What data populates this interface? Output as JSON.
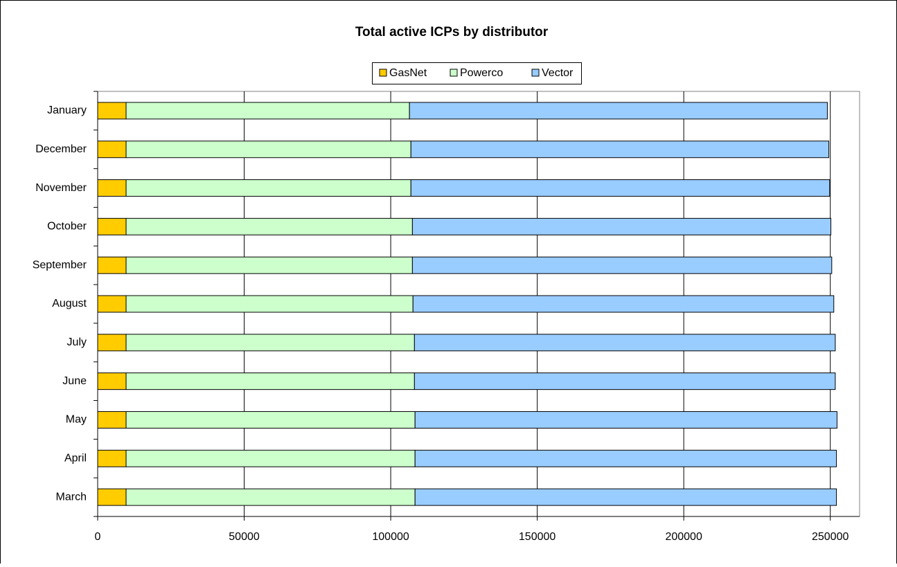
{
  "chart_data": {
    "type": "stacked-barh",
    "title": "Total active ICPs by distributor",
    "categories": [
      "March",
      "April",
      "May",
      "June",
      "July",
      "August",
      "September",
      "October",
      "November",
      "December",
      "January"
    ],
    "series": [
      {
        "name": "GasNet",
        "color": "#ffcc00",
        "values": [
          9700,
          9700,
          9700,
          9700,
          9700,
          9700,
          9700,
          9700,
          9700,
          9700,
          9700
        ]
      },
      {
        "name": "Powerco",
        "color": "#ccffcc",
        "values": [
          98600,
          98600,
          98600,
          98400,
          98400,
          97900,
          97700,
          97700,
          97200,
          97200,
          96700
        ]
      },
      {
        "name": "Vector",
        "color": "#99ccff",
        "values": [
          143800,
          143800,
          144000,
          143600,
          143600,
          143600,
          143100,
          142800,
          142900,
          142600,
          142600
        ]
      }
    ],
    "xlim": [
      0,
      260000
    ],
    "xticks": [
      0,
      50000,
      100000,
      150000,
      200000,
      250000
    ],
    "grid": true,
    "legend": "top"
  }
}
